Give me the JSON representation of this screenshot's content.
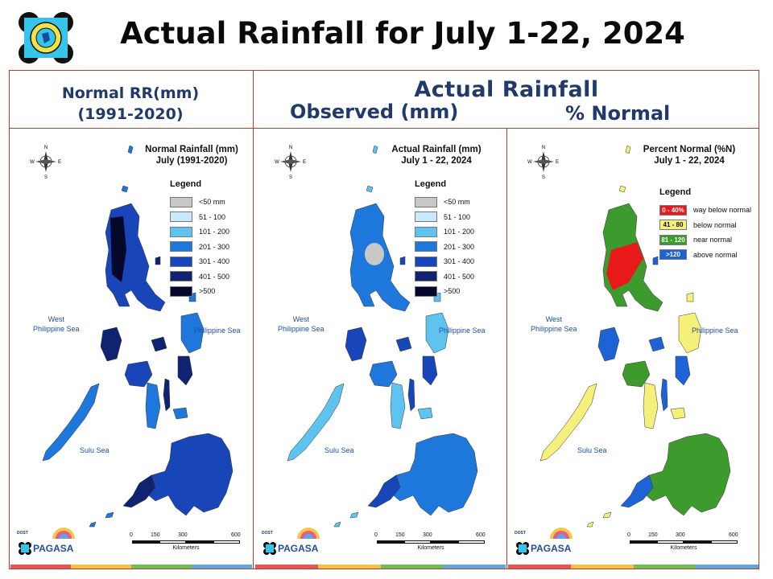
{
  "title": "Actual Rainfall for July 1-22, 2024",
  "headers": {
    "normal_line1": "Normal RR(mm)",
    "normal_line2": "(1991-2020)",
    "actual": "Actual Rainfall",
    "observed": "Observed (mm)",
    "percent": "% Normal"
  },
  "compass": {
    "n": "N",
    "s": "S",
    "e": "E",
    "w": "W"
  },
  "seas": {
    "west_line1": "West",
    "west_line2": "Philippine Sea",
    "east": "Philippine Sea",
    "south": "Sulu Sea"
  },
  "scale": {
    "ticks": [
      "0",
      "150",
      "300",
      "600"
    ],
    "unit": "Kilometers"
  },
  "brand": {
    "text": "PAGASA",
    "small": "DOST"
  },
  "panels": [
    {
      "title_line1": "Normal Rainfall (mm)",
      "title_line2": "July (1991-2020)",
      "legend_title": "Legend",
      "legend": [
        {
          "label": "<50 mm",
          "color": "#c8c8c8"
        },
        {
          "label": "51 - 100",
          "color": "#c6e9fb"
        },
        {
          "label": "101 - 200",
          "color": "#5fc3ef"
        },
        {
          "label": "201 - 300",
          "color": "#1e78dc"
        },
        {
          "label": "301 - 400",
          "color": "#1846b8"
        },
        {
          "label": "401 - 500",
          "color": "#0f2370"
        },
        {
          "label": ">500",
          "color": "#05082a"
        }
      ]
    },
    {
      "title_line1": "Actual Rainfall (mm)",
      "title_line2": "July 1 - 22, 2024",
      "legend_title": "Legend",
      "legend": [
        {
          "label": "<50 mm",
          "color": "#c8c8c8"
        },
        {
          "label": "51 - 100",
          "color": "#c6e9fb"
        },
        {
          "label": "101 - 200",
          "color": "#5fc3ef"
        },
        {
          "label": "201 - 300",
          "color": "#1e78dc"
        },
        {
          "label": "301 - 400",
          "color": "#1846b8"
        },
        {
          "label": "401 - 500",
          "color": "#0f2370"
        },
        {
          "label": ">500",
          "color": "#05082a"
        }
      ]
    },
    {
      "title_line1": "Percent Normal (%N)",
      "title_line2": "July 1 - 22, 2024",
      "legend_title": "Legend",
      "legend": [
        {
          "range": "0 - 40%",
          "label": "way below normal",
          "color": "#e8191b"
        },
        {
          "range": "41 - 80",
          "label": "below normal",
          "color": "#f5f07a"
        },
        {
          "range": "81 - 120",
          "label": "near normal",
          "color": "#3d9b2e"
        },
        {
          "range": ">120",
          "label": "above normal",
          "color": "#1e63d6"
        }
      ]
    }
  ]
}
